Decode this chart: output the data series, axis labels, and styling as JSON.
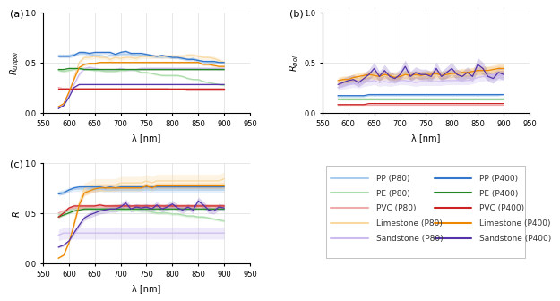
{
  "wavelengths": [
    580,
    590,
    600,
    610,
    620,
    630,
    640,
    650,
    660,
    670,
    680,
    690,
    700,
    710,
    720,
    730,
    740,
    750,
    760,
    770,
    780,
    790,
    800,
    810,
    820,
    830,
    840,
    850,
    860,
    870,
    880,
    890,
    900
  ],
  "colors": {
    "PP_P80": "#aaccee",
    "PE_P80": "#aaddaa",
    "PVC_P80": "#f0aaaa",
    "Limestone_P80": "#f8d8a0",
    "Sandstone_P80": "#ccbbee",
    "PP_P400": "#3377cc",
    "PE_P400": "#228822",
    "PVC_P400": "#cc2222",
    "Limestone_P400": "#ee8800",
    "Sandstone_P400": "#5533aa"
  },
  "panel_a": {
    "ylabel": "$R_{unpol}$",
    "ylim": [
      0.0,
      1.0
    ],
    "yticks": [
      0.0,
      0.5,
      1.0
    ],
    "PP_P80": [
      0.57,
      0.57,
      0.57,
      0.58,
      0.59,
      0.59,
      0.58,
      0.57,
      0.57,
      0.56,
      0.57,
      0.57,
      0.58,
      0.58,
      0.58,
      0.57,
      0.57,
      0.57,
      0.56,
      0.56,
      0.55,
      0.56,
      0.55,
      0.55,
      0.54,
      0.53,
      0.54,
      0.52,
      0.51,
      0.5,
      0.5,
      0.5,
      0.49
    ],
    "PE_P80": [
      0.42,
      0.41,
      0.42,
      0.43,
      0.44,
      0.44,
      0.43,
      0.42,
      0.42,
      0.41,
      0.41,
      0.41,
      0.42,
      0.42,
      0.43,
      0.42,
      0.4,
      0.4,
      0.39,
      0.38,
      0.37,
      0.37,
      0.37,
      0.37,
      0.36,
      0.34,
      0.33,
      0.33,
      0.31,
      0.3,
      0.29,
      0.28,
      0.27
    ],
    "PVC_P80": [
      0.25,
      0.24,
      0.24,
      0.24,
      0.24,
      0.24,
      0.24,
      0.24,
      0.24,
      0.24,
      0.24,
      0.24,
      0.24,
      0.24,
      0.24,
      0.24,
      0.24,
      0.24,
      0.24,
      0.24,
      0.24,
      0.24,
      0.23,
      0.23,
      0.23,
      0.22,
      0.22,
      0.22,
      0.22,
      0.22,
      0.22,
      0.22,
      0.22
    ],
    "Limestone_P80": [
      0.05,
      0.08,
      0.2,
      0.35,
      0.5,
      0.55,
      0.55,
      0.56,
      0.55,
      0.55,
      0.53,
      0.55,
      0.54,
      0.55,
      0.55,
      0.54,
      0.56,
      0.56,
      0.56,
      0.56,
      0.56,
      0.56,
      0.56,
      0.56,
      0.56,
      0.57,
      0.57,
      0.56,
      0.55,
      0.55,
      0.54,
      0.52,
      0.5
    ],
    "Sandstone_P80": [
      0.05,
      0.08,
      0.18,
      0.28,
      0.38,
      0.44,
      0.45,
      0.44,
      0.43,
      0.43,
      0.43,
      0.43,
      0.44,
      0.43,
      0.43,
      0.43,
      0.44,
      0.44,
      0.44,
      0.44,
      0.44,
      0.44,
      0.44,
      0.44,
      0.44,
      0.44,
      0.44,
      0.44,
      0.44,
      0.44,
      0.44,
      0.44,
      0.44
    ],
    "PP_P400": [
      0.56,
      0.56,
      0.56,
      0.57,
      0.6,
      0.6,
      0.59,
      0.6,
      0.6,
      0.6,
      0.6,
      0.58,
      0.6,
      0.61,
      0.59,
      0.59,
      0.59,
      0.58,
      0.57,
      0.56,
      0.57,
      0.56,
      0.55,
      0.55,
      0.54,
      0.53,
      0.53,
      0.52,
      0.51,
      0.51,
      0.51,
      0.5,
      0.5
    ],
    "PE_P400": [
      0.43,
      0.43,
      0.44,
      0.44,
      0.44,
      0.43,
      0.43,
      0.43,
      0.43,
      0.43,
      0.43,
      0.43,
      0.43,
      0.43,
      0.43,
      0.43,
      0.43,
      0.43,
      0.43,
      0.43,
      0.43,
      0.43,
      0.43,
      0.43,
      0.43,
      0.43,
      0.43,
      0.43,
      0.43,
      0.43,
      0.43,
      0.43,
      0.43
    ],
    "PVC_P400": [
      0.24,
      0.24,
      0.24,
      0.24,
      0.24,
      0.24,
      0.24,
      0.24,
      0.24,
      0.24,
      0.24,
      0.24,
      0.24,
      0.24,
      0.24,
      0.24,
      0.24,
      0.24,
      0.24,
      0.24,
      0.24,
      0.24,
      0.24,
      0.24,
      0.24,
      0.24,
      0.24,
      0.24,
      0.24,
      0.24,
      0.24,
      0.24,
      0.24
    ],
    "Limestone_P400": [
      0.06,
      0.09,
      0.2,
      0.33,
      0.45,
      0.48,
      0.49,
      0.49,
      0.5,
      0.5,
      0.5,
      0.5,
      0.5,
      0.5,
      0.5,
      0.5,
      0.5,
      0.5,
      0.5,
      0.5,
      0.5,
      0.5,
      0.5,
      0.5,
      0.5,
      0.5,
      0.5,
      0.5,
      0.48,
      0.48,
      0.47,
      0.46,
      0.46
    ],
    "Sandstone_P400": [
      0.04,
      0.07,
      0.15,
      0.25,
      0.28,
      0.28,
      0.28,
      0.28,
      0.28,
      0.28,
      0.28,
      0.28,
      0.28,
      0.28,
      0.28,
      0.28,
      0.28,
      0.28,
      0.28,
      0.28,
      0.28,
      0.28,
      0.28,
      0.28,
      0.28,
      0.28,
      0.28,
      0.28,
      0.28,
      0.28,
      0.28,
      0.28,
      0.28
    ],
    "std_scale": {
      "PP_P80": 0.025,
      "PE_P80": 0.025,
      "PVC_P80": 0.02,
      "Limestone_P80": 0.04,
      "Sandstone_P80": 0.035,
      "PP_P400": 0.025,
      "PE_P400": 0.02,
      "PVC_P400": 0.02,
      "Limestone_P400": 0.025,
      "Sandstone_P400": 0.02
    }
  },
  "panel_b": {
    "ylabel": "$R_{pol}$",
    "ylim": [
      0.0,
      1.0
    ],
    "yticks": [
      0.0,
      0.5,
      1.0
    ],
    "PP_P80": [
      0.16,
      0.16,
      0.16,
      0.16,
      0.16,
      0.16,
      0.17,
      0.17,
      0.17,
      0.17,
      0.17,
      0.17,
      0.17,
      0.17,
      0.17,
      0.17,
      0.17,
      0.17,
      0.17,
      0.17,
      0.17,
      0.17,
      0.17,
      0.17,
      0.17,
      0.17,
      0.17,
      0.17,
      0.17,
      0.17,
      0.17,
      0.17,
      0.18
    ],
    "PE_P80": [
      0.13,
      0.13,
      0.13,
      0.13,
      0.13,
      0.13,
      0.13,
      0.13,
      0.13,
      0.13,
      0.13,
      0.13,
      0.13,
      0.13,
      0.13,
      0.13,
      0.13,
      0.13,
      0.13,
      0.13,
      0.13,
      0.13,
      0.13,
      0.13,
      0.13,
      0.13,
      0.13,
      0.13,
      0.13,
      0.13,
      0.13,
      0.13,
      0.13
    ],
    "PVC_P80": [
      0.08,
      0.08,
      0.08,
      0.08,
      0.08,
      0.08,
      0.08,
      0.08,
      0.08,
      0.08,
      0.08,
      0.08,
      0.08,
      0.08,
      0.08,
      0.08,
      0.08,
      0.08,
      0.08,
      0.08,
      0.08,
      0.08,
      0.08,
      0.08,
      0.08,
      0.08,
      0.08,
      0.08,
      0.08,
      0.08,
      0.08,
      0.08,
      0.08
    ],
    "Limestone_P80": [
      0.3,
      0.32,
      0.33,
      0.34,
      0.33,
      0.35,
      0.36,
      0.38,
      0.36,
      0.37,
      0.36,
      0.37,
      0.37,
      0.38,
      0.37,
      0.36,
      0.37,
      0.37,
      0.37,
      0.37,
      0.37,
      0.38,
      0.38,
      0.38,
      0.38,
      0.38,
      0.39,
      0.4,
      0.4,
      0.41,
      0.41,
      0.42,
      0.42
    ],
    "Sandstone_P80": [
      0.25,
      0.27,
      0.28,
      0.29,
      0.28,
      0.3,
      0.31,
      0.32,
      0.3,
      0.31,
      0.3,
      0.31,
      0.32,
      0.32,
      0.31,
      0.3,
      0.31,
      0.31,
      0.31,
      0.31,
      0.31,
      0.32,
      0.32,
      0.32,
      0.32,
      0.32,
      0.33,
      0.35,
      0.36,
      0.37,
      0.38,
      0.37,
      0.37
    ],
    "PP_P400": [
      0.17,
      0.17,
      0.17,
      0.17,
      0.17,
      0.17,
      0.18,
      0.18,
      0.18,
      0.18,
      0.18,
      0.18,
      0.18,
      0.18,
      0.18,
      0.18,
      0.18,
      0.18,
      0.18,
      0.18,
      0.18,
      0.18,
      0.18,
      0.18,
      0.18,
      0.18,
      0.18,
      0.18,
      0.18,
      0.18,
      0.18,
      0.18,
      0.18
    ],
    "PE_P400": [
      0.14,
      0.14,
      0.14,
      0.14,
      0.14,
      0.14,
      0.14,
      0.14,
      0.14,
      0.14,
      0.14,
      0.14,
      0.14,
      0.14,
      0.14,
      0.14,
      0.14,
      0.14,
      0.14,
      0.14,
      0.14,
      0.14,
      0.14,
      0.14,
      0.14,
      0.14,
      0.14,
      0.14,
      0.14,
      0.14,
      0.14,
      0.14,
      0.14
    ],
    "PVC_P400": [
      0.08,
      0.08,
      0.08,
      0.08,
      0.08,
      0.08,
      0.09,
      0.09,
      0.09,
      0.09,
      0.09,
      0.09,
      0.09,
      0.09,
      0.09,
      0.09,
      0.09,
      0.09,
      0.09,
      0.09,
      0.09,
      0.09,
      0.09,
      0.09,
      0.09,
      0.09,
      0.09,
      0.09,
      0.09,
      0.09,
      0.09,
      0.09,
      0.09
    ],
    "Limestone_P400": [
      0.32,
      0.33,
      0.33,
      0.35,
      0.36,
      0.37,
      0.38,
      0.37,
      0.36,
      0.38,
      0.37,
      0.35,
      0.36,
      0.38,
      0.37,
      0.38,
      0.37,
      0.38,
      0.38,
      0.39,
      0.37,
      0.38,
      0.39,
      0.39,
      0.4,
      0.4,
      0.41,
      0.42,
      0.42,
      0.42,
      0.43,
      0.44,
      0.44
    ],
    "Sandstone_P400": [
      0.28,
      0.3,
      0.32,
      0.33,
      0.3,
      0.34,
      0.38,
      0.44,
      0.36,
      0.42,
      0.36,
      0.34,
      0.38,
      0.46,
      0.36,
      0.4,
      0.38,
      0.38,
      0.36,
      0.44,
      0.36,
      0.4,
      0.44,
      0.38,
      0.36,
      0.4,
      0.36,
      0.48,
      0.44,
      0.36,
      0.34,
      0.4,
      0.38
    ],
    "std_scale": {
      "PP_P80": 0.015,
      "PE_P80": 0.015,
      "PVC_P80": 0.01,
      "Limestone_P80": 0.12,
      "Sandstone_P80": 0.13,
      "PP_P400": 0.015,
      "PE_P400": 0.01,
      "PVC_P400": 0.01,
      "Limestone_P400": 0.1,
      "Sandstone_P400": 0.14
    }
  },
  "panel_c": {
    "ylabel": "$R$",
    "ylim": [
      0.0,
      1.0
    ],
    "yticks": [
      0.0,
      0.5,
      1.0
    ],
    "PP_P80": [
      0.7,
      0.71,
      0.73,
      0.74,
      0.74,
      0.74,
      0.74,
      0.73,
      0.74,
      0.73,
      0.73,
      0.73,
      0.73,
      0.73,
      0.73,
      0.73,
      0.73,
      0.73,
      0.73,
      0.73,
      0.73,
      0.73,
      0.73,
      0.73,
      0.73,
      0.73,
      0.73,
      0.73,
      0.73,
      0.73,
      0.73,
      0.73,
      0.73
    ],
    "PE_P80": [
      0.48,
      0.5,
      0.52,
      0.54,
      0.55,
      0.55,
      0.55,
      0.54,
      0.54,
      0.54,
      0.53,
      0.53,
      0.53,
      0.53,
      0.53,
      0.53,
      0.52,
      0.52,
      0.51,
      0.5,
      0.5,
      0.5,
      0.49,
      0.49,
      0.48,
      0.47,
      0.47,
      0.46,
      0.46,
      0.45,
      0.44,
      0.43,
      0.42
    ],
    "PVC_P80": [
      0.5,
      0.52,
      0.54,
      0.55,
      0.55,
      0.55,
      0.56,
      0.56,
      0.56,
      0.56,
      0.56,
      0.57,
      0.57,
      0.57,
      0.56,
      0.57,
      0.57,
      0.57,
      0.57,
      0.57,
      0.57,
      0.57,
      0.57,
      0.57,
      0.57,
      0.57,
      0.57,
      0.57,
      0.57,
      0.57,
      0.57,
      0.57,
      0.57
    ],
    "Limestone_P80": [
      0.05,
      0.08,
      0.2,
      0.4,
      0.6,
      0.74,
      0.76,
      0.78,
      0.78,
      0.78,
      0.78,
      0.78,
      0.8,
      0.8,
      0.8,
      0.8,
      0.8,
      0.82,
      0.8,
      0.82,
      0.82,
      0.82,
      0.82,
      0.82,
      0.82,
      0.82,
      0.82,
      0.82,
      0.82,
      0.82,
      0.82,
      0.82,
      0.84
    ],
    "Sandstone_P80": [
      0.28,
      0.3,
      0.3,
      0.3,
      0.3,
      0.3,
      0.3,
      0.3,
      0.3,
      0.3,
      0.3,
      0.3,
      0.3,
      0.3,
      0.3,
      0.3,
      0.3,
      0.3,
      0.3,
      0.3,
      0.3,
      0.3,
      0.3,
      0.3,
      0.3,
      0.3,
      0.3,
      0.3,
      0.3,
      0.3,
      0.3,
      0.3,
      0.3
    ],
    "PP_P400": [
      0.69,
      0.7,
      0.73,
      0.75,
      0.76,
      0.76,
      0.76,
      0.76,
      0.76,
      0.75,
      0.76,
      0.75,
      0.76,
      0.76,
      0.76,
      0.76,
      0.76,
      0.76,
      0.76,
      0.76,
      0.76,
      0.76,
      0.76,
      0.76,
      0.76,
      0.76,
      0.76,
      0.76,
      0.76,
      0.76,
      0.76,
      0.76,
      0.76
    ],
    "PE_P400": [
      0.46,
      0.48,
      0.5,
      0.52,
      0.53,
      0.54,
      0.54,
      0.54,
      0.54,
      0.54,
      0.54,
      0.54,
      0.54,
      0.54,
      0.54,
      0.54,
      0.54,
      0.54,
      0.54,
      0.54,
      0.54,
      0.54,
      0.54,
      0.54,
      0.54,
      0.54,
      0.54,
      0.54,
      0.54,
      0.54,
      0.54,
      0.54,
      0.54
    ],
    "PVC_P400": [
      0.46,
      0.5,
      0.55,
      0.57,
      0.57,
      0.57,
      0.57,
      0.57,
      0.58,
      0.57,
      0.57,
      0.57,
      0.57,
      0.57,
      0.57,
      0.57,
      0.57,
      0.57,
      0.57,
      0.57,
      0.57,
      0.57,
      0.57,
      0.57,
      0.57,
      0.57,
      0.57,
      0.57,
      0.57,
      0.57,
      0.57,
      0.57,
      0.57
    ],
    "Limestone_P400": [
      0.05,
      0.08,
      0.2,
      0.38,
      0.58,
      0.7,
      0.72,
      0.74,
      0.75,
      0.75,
      0.75,
      0.75,
      0.75,
      0.75,
      0.75,
      0.75,
      0.75,
      0.77,
      0.75,
      0.77,
      0.77,
      0.77,
      0.77,
      0.77,
      0.77,
      0.77,
      0.77,
      0.77,
      0.77,
      0.77,
      0.77,
      0.77,
      0.77
    ],
    "Sandstone_P400": [
      0.16,
      0.18,
      0.22,
      0.3,
      0.38,
      0.45,
      0.48,
      0.5,
      0.52,
      0.53,
      0.54,
      0.54,
      0.56,
      0.6,
      0.54,
      0.56,
      0.55,
      0.56,
      0.54,
      0.58,
      0.54,
      0.56,
      0.59,
      0.55,
      0.53,
      0.56,
      0.53,
      0.62,
      0.58,
      0.53,
      0.52,
      0.56,
      0.55
    ],
    "std_scale": {
      "PP_P80": 0.035,
      "PE_P80": 0.03,
      "PVC_P80": 0.04,
      "Limestone_P80": 0.08,
      "Sandstone_P80": 0.2,
      "PP_P400": 0.02,
      "PE_P400": 0.02,
      "PVC_P400": 0.03,
      "Limestone_P400": 0.04,
      "Sandstone_P400": 0.06
    }
  },
  "legend_entries": [
    [
      "PP (P80)",
      "#aaccee",
      "PP (P400)",
      "#3377cc"
    ],
    [
      "PE (P80)",
      "#aaddaa",
      "PE (P400)",
      "#228822"
    ],
    [
      "PVC (P80)",
      "#f0aaaa",
      "PVC (P400)",
      "#cc2222"
    ],
    [
      "Limestone (P80)",
      "#f8d8a0",
      "Limestone (P400)",
      "#ee8800"
    ],
    [
      "Sandstone (P80)",
      "#ccbbee",
      "Sandstone (P400)",
      "#5533aa"
    ]
  ],
  "xlim": [
    550,
    950
  ],
  "xticks": [
    550,
    600,
    650,
    700,
    750,
    800,
    850,
    900,
    950
  ],
  "xlabel": "λ [nm]",
  "figure_bg": "#ffffff",
  "axes_bg": "#ffffff",
  "grid_color": "#dddddd"
}
